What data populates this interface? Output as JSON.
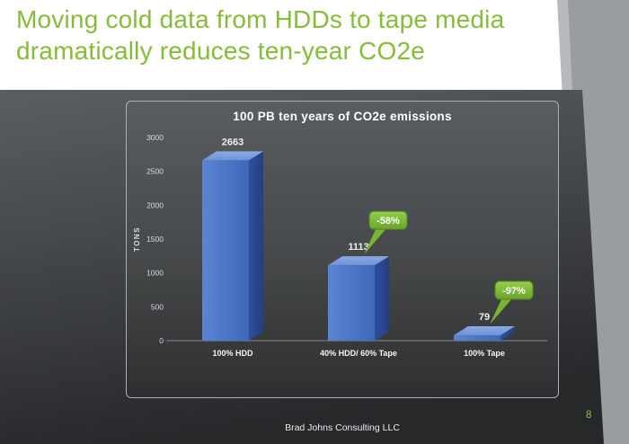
{
  "slide": {
    "title_line1": "Moving cold data from HDDs to tape media",
    "title_line2": "dramatically reduces ten-year CO2e",
    "footer": "Brad Johns Consulting LLC",
    "page_number": "8",
    "title_color": "#87bb3a",
    "accent_green": "#8cc63f"
  },
  "chart_data": {
    "type": "bar",
    "title": "100 PB ten years of CO2e emissions",
    "ylabel": "TONS",
    "xlabel": "",
    "categories": [
      "100% HDD",
      "40% HDD/ 60% Tape",
      "100% Tape"
    ],
    "values": [
      2663,
      1113,
      79
    ],
    "ylim": [
      0,
      3000
    ],
    "yticks": [
      0,
      500,
      1000,
      1500,
      2000,
      2500,
      3000
    ],
    "grid": false,
    "legend": "none",
    "bar_color": "#4a74c8",
    "annotations": [
      {
        "label": "-58%",
        "category_index": 1
      },
      {
        "label": "-97%",
        "category_index": 2
      }
    ]
  }
}
